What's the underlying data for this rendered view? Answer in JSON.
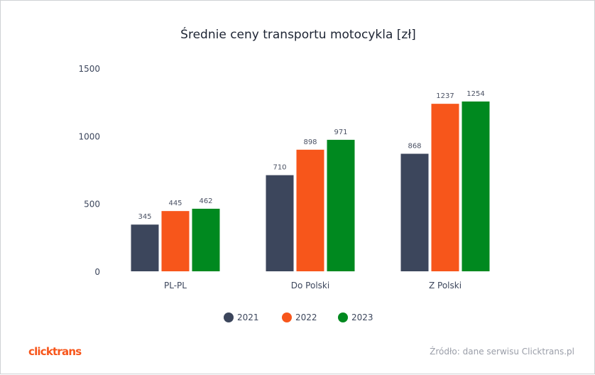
{
  "chart_data": {
    "type": "bar",
    "title": "Średnie ceny transportu motocykla [zł]",
    "categories": [
      "PL-PL",
      "Do Polski",
      "Z Polski"
    ],
    "series": [
      {
        "name": "2021",
        "color": "#3c465c",
        "values": [
          345,
          710,
          868
        ]
      },
      {
        "name": "2022",
        "color": "#f7561b",
        "values": [
          445,
          898,
          1237
        ]
      },
      {
        "name": "2023",
        "color": "#00891f",
        "values": [
          462,
          971,
          1254
        ]
      }
    ],
    "ylim": [
      0,
      1500
    ],
    "yticks": [
      0,
      500,
      1000,
      1500
    ],
    "grid": false,
    "legend": "bottom",
    "data_labels": true
  },
  "footer": {
    "logo": "clicktrans",
    "source": "Źródło: dane serwisu Clicktrans.pl"
  }
}
